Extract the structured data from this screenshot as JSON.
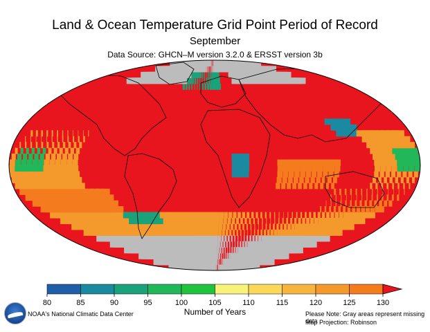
{
  "title": "Land & Ocean Temperature Grid Point Period of Record",
  "subtitle": "September",
  "source": "Data Source: GHCN–M version 3.2.0 & ERSST version 3b",
  "legend": {
    "title": "Number of Years",
    "ticks": [
      "80",
      "85",
      "90",
      "95",
      "100",
      "105",
      "110",
      "115",
      "120",
      "125",
      "130"
    ],
    "colors": [
      "#1f5fa8",
      "#1b8aa0",
      "#1aa37a",
      "#22b85a",
      "#1fc33e",
      "#f7f37a",
      "#f9d85a",
      "#f7b540",
      "#f49a2c",
      "#f47b1e",
      "#e8141e"
    ]
  },
  "map": {
    "projection": "Robinson",
    "missing_color": "#bcbcbc",
    "grid_step_degrees": 5
  },
  "footer": {
    "credit": "NOAA's National Climatic Data Center",
    "note": "Please Note: Gray areas represent missing data",
    "projection_note": "Map Projection: Robinson"
  },
  "logo": {
    "name": "NOAA"
  }
}
